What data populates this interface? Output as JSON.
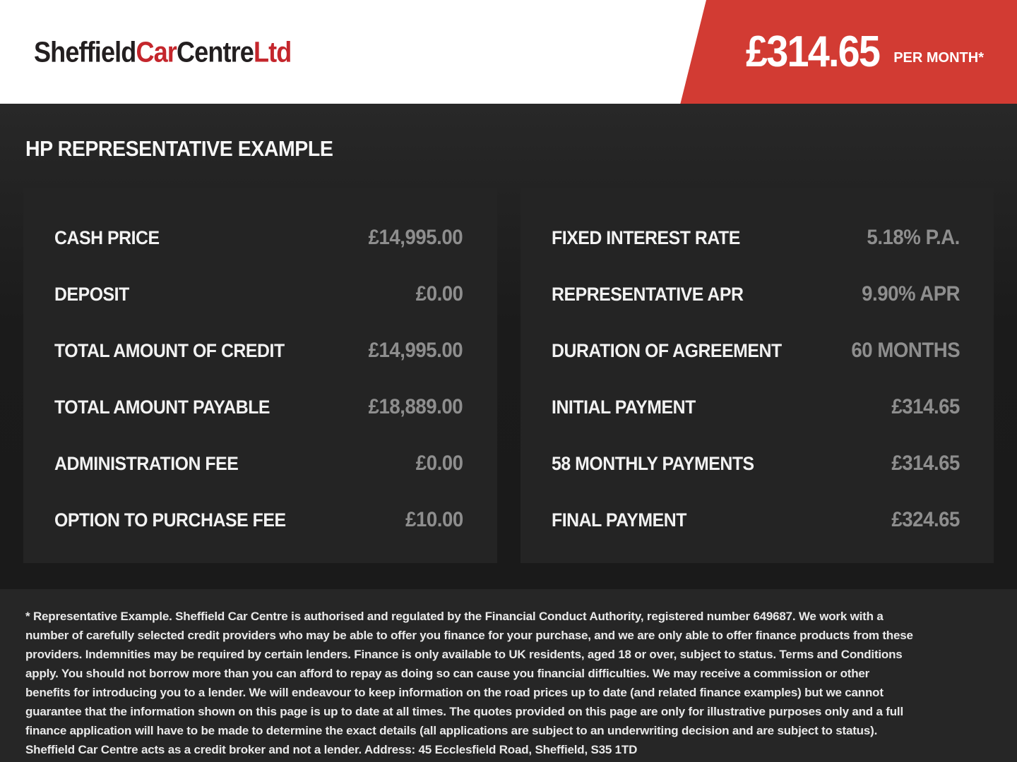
{
  "header": {
    "logo": {
      "part1": "Sheffield",
      "part2": "Car",
      "part3": "Centre",
      "part4": "Ltd"
    },
    "price_banner": {
      "amount": "£314.65",
      "period": "PER MONTH*"
    }
  },
  "main": {
    "title": "HP REPRESENTATIVE EXAMPLE",
    "left_panel": {
      "rows": [
        {
          "label": "CASH PRICE",
          "value": "£14,995.00"
        },
        {
          "label": "DEPOSIT",
          "value": "£0.00"
        },
        {
          "label": "TOTAL AMOUNT OF CREDIT",
          "value": "£14,995.00"
        },
        {
          "label": "TOTAL AMOUNT PAYABLE",
          "value": "£18,889.00"
        },
        {
          "label": "ADMINISTRATION FEE",
          "value": "£0.00"
        },
        {
          "label": "OPTION TO PURCHASE FEE",
          "value": "£10.00"
        }
      ]
    },
    "right_panel": {
      "rows": [
        {
          "label": "FIXED INTEREST RATE",
          "value": "5.18% P.A."
        },
        {
          "label": "REPRESENTATIVE APR",
          "value": "9.90% APR"
        },
        {
          "label": "DURATION OF AGREEMENT",
          "value": "60 MONTHS"
        },
        {
          "label": "INITIAL PAYMENT",
          "value": "£314.65"
        },
        {
          "label": "58 MONTHLY PAYMENTS",
          "value": "£314.65"
        },
        {
          "label": "FINAL PAYMENT",
          "value": "£324.65"
        }
      ]
    }
  },
  "footer": {
    "disclaimer": "* Representative Example. Sheffield Car Centre is authorised and regulated by the Financial Conduct Authority, registered number 649687. We work with a number of carefully selected credit providers who may be able to offer you finance for your purchase, and we are only able to offer finance products from these providers. Indemnities may be required by certain lenders. Finance is only available to UK residents, aged 18 or over, subject to status. Terms and Conditions apply. You should not borrow more than you can afford to repay as doing so can cause you financial difficulties. We may receive a commission or other benefits for introducing you to a lender. We will endeavour to keep information on the road prices up to date (and related finance examples) but we cannot guarantee that the information shown on this page is up to date at all times. The quotes provided on this page are only for illustrative purposes only and a full finance application will have to be made to determine the exact details (all applications are subject to an underwriting decision and are subject to status). Sheffield Car Centre acts as a credit broker and not a lender. Address: 45 Ecclesfield Road, Sheffield, S35 1TD"
  },
  "colors": {
    "banner_red": "#d23b33",
    "logo_red": "#c4262c",
    "logo_dark": "#231f20",
    "panel_background": "#242424",
    "value_grey": "#8e8e8e"
  }
}
